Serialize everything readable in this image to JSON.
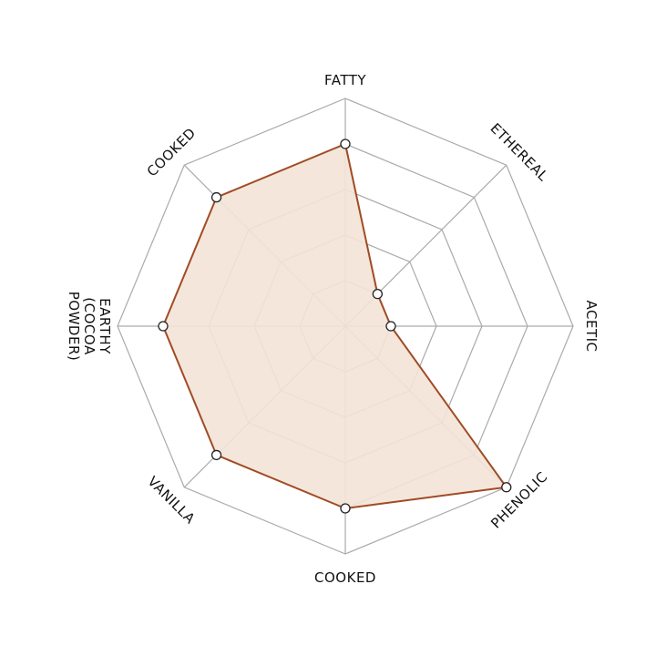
{
  "chart_data": {
    "type": "radar",
    "categories": [
      "FATTY",
      "ETHEREAL",
      "ACETIC",
      "PHENOLIC",
      "COOKED",
      "VANILLA",
      "EARTHY (COCOA POWDER)",
      "COOKED"
    ],
    "values": [
      4,
      1,
      1,
      5,
      4,
      4,
      4,
      4
    ],
    "ylim": [
      0,
      5
    ],
    "yticks": [
      1,
      2,
      3,
      4,
      5
    ],
    "grid": true,
    "color": "#a04b25",
    "fill": "#f3e3d6"
  }
}
